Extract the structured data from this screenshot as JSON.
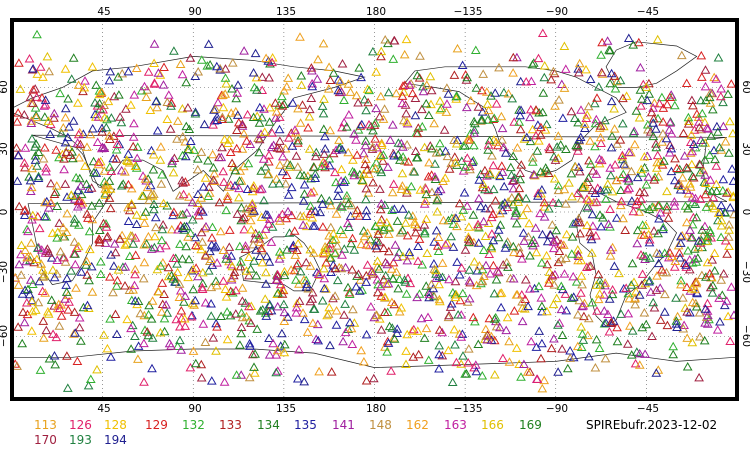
{
  "map": {
    "top_longitude_labels": [
      "45",
      "90",
      "135",
      "180",
      "−135",
      "−90",
      "−45"
    ],
    "bottom_longitude_labels": [
      "45",
      "90",
      "135",
      "180",
      "−135",
      "−90",
      "−45"
    ],
    "left_latitude_labels": [
      "60",
      "30",
      "0",
      "−30",
      "−60"
    ],
    "right_latitude_labels": [
      "60",
      "30",
      "0",
      "−30",
      "−60"
    ],
    "grid": "dotted",
    "marker": "open-triangle"
  },
  "legend": {
    "items": [
      {
        "label": "113",
        "color": "#e8a21e"
      },
      {
        "label": "126",
        "color": "#e0206a"
      },
      {
        "label": "128",
        "color": "#f0c000"
      },
      {
        "label": "129",
        "color": "#d82020"
      },
      {
        "label": "132",
        "color": "#30b030"
      },
      {
        "label": "133",
        "color": "#b02020"
      },
      {
        "label": "134",
        "color": "#208020"
      },
      {
        "label": "135",
        "color": "#2020a0"
      },
      {
        "label": "141",
        "color": "#a020a0"
      },
      {
        "label": "148",
        "color": "#c09040"
      },
      {
        "label": "162",
        "color": "#f0a020"
      },
      {
        "label": "163",
        "color": "#c020a0"
      },
      {
        "label": "166",
        "color": "#e0c000"
      },
      {
        "label": "169",
        "color": "#208020"
      },
      {
        "label": "170",
        "color": "#a02040"
      },
      {
        "label": "193",
        "color": "#208040"
      },
      {
        "label": "194",
        "color": "#202090"
      }
    ]
  },
  "source_label": "SPIREbufr.2023-12-02"
}
